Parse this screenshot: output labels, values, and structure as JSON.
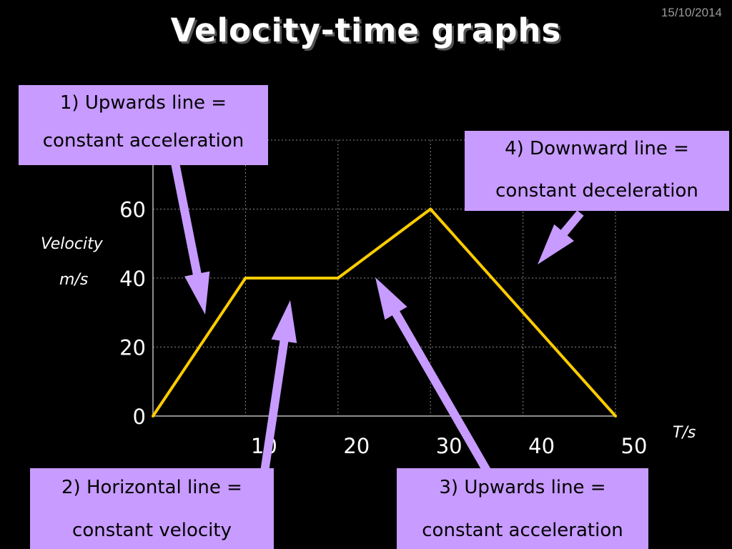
{
  "header": {
    "title": "Velocity-time graphs",
    "date": "15/10/2014"
  },
  "callouts": {
    "c1": {
      "line1": "1) Upwards line =",
      "line2": "constant acceleration"
    },
    "c2": {
      "line1": "2) Horizontal line =",
      "line2": "constant velocity"
    },
    "c3": {
      "line1": "3) Upwards line =",
      "line2": "constant acceleration"
    },
    "c4": {
      "line1": "4) Downward line =",
      "line2": "constant deceleration"
    }
  },
  "colors": {
    "background": "#000000",
    "line": "#ffcc00",
    "callout": "#c79bff",
    "grid": "#888888"
  },
  "chart_data": {
    "type": "line",
    "x": [
      0,
      10,
      20,
      30,
      50
    ],
    "series": [
      {
        "values": [
          0,
          40,
          40,
          60,
          0
        ]
      }
    ],
    "x_ticks": [
      10,
      20,
      30,
      40,
      50
    ],
    "x_tick_labels": [
      "10",
      "20",
      "30",
      "40",
      "50"
    ],
    "y_ticks": [
      0,
      20,
      40,
      60
    ],
    "y_tick_labels": [
      "0",
      "20",
      "40",
      "60"
    ],
    "xlabel": "T/s",
    "ylabel_line1": "Velocity",
    "ylabel_line2": "m/s",
    "xlim": [
      0,
      50
    ],
    "ylim": [
      0,
      80
    ],
    "grid": true
  }
}
